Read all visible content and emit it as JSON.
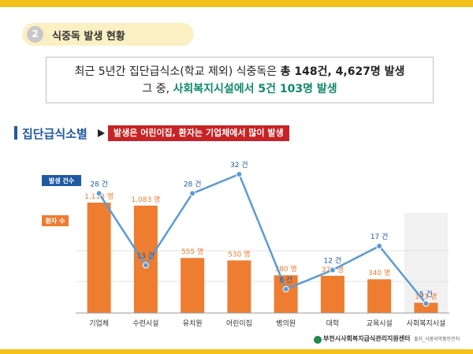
{
  "section": {
    "number": "2",
    "title": "식중독 발생 현황"
  },
  "summary": {
    "line1_prefix": "최근 5년간 집단급식소(학교 제외) 식중독은 ",
    "line1_bold": "총 148건, 4,627명 발생",
    "line2_prefix": "그  중, ",
    "line2_highlight": "사회복지시설에서 5건 103명 발생"
  },
  "chart_heading": {
    "title": "집단급식소별",
    "badge": "발생은 어린이집, 환자는 기업체에서 많이 발생"
  },
  "colors": {
    "accent_yellow": "#f2c21b",
    "bar_orange": "#ee7d31",
    "line_blue": "#5b9bd5",
    "label_blue": "#1f5aa3",
    "badge_red": "#c72325",
    "highlight_green": "#0f8a6c"
  },
  "chart_data": {
    "type": "bar",
    "categories": [
      "기업체",
      "수련시설",
      "유치원",
      "어린이집",
      "병의원",
      "대학",
      "교육시설",
      "사회복지시설"
    ],
    "series": [
      {
        "name": "환자 수",
        "type": "bar",
        "values": [
          1113,
          1083,
          555,
          530,
          380,
          375,
          340,
          103
        ],
        "labels": [
          "1,113 명",
          "1,083 명",
          "555 명",
          "530 명",
          "380 명",
          "375 명",
          "340 명",
          "103 명"
        ]
      },
      {
        "name": "발생 건수",
        "type": "line",
        "values": [
          28,
          13,
          28,
          32,
          8,
          12,
          17,
          5
        ],
        "labels": [
          "28 건",
          "13 건",
          "28 건",
          "32 건",
          "8 건",
          "12 건",
          "17 건",
          "5 건"
        ]
      }
    ],
    "legend": {
      "line_label": "발생 건수",
      "bar_label": "환자 수"
    },
    "highlighted_category": "사회복지시설",
    "bar_ylim": [
      0,
      1700
    ],
    "line_ylim": [
      0,
      40
    ],
    "grid": true
  },
  "footer": {
    "org": "부천시사회복지급식관리지원센터",
    "source": "출처_식품의약품안전처"
  }
}
